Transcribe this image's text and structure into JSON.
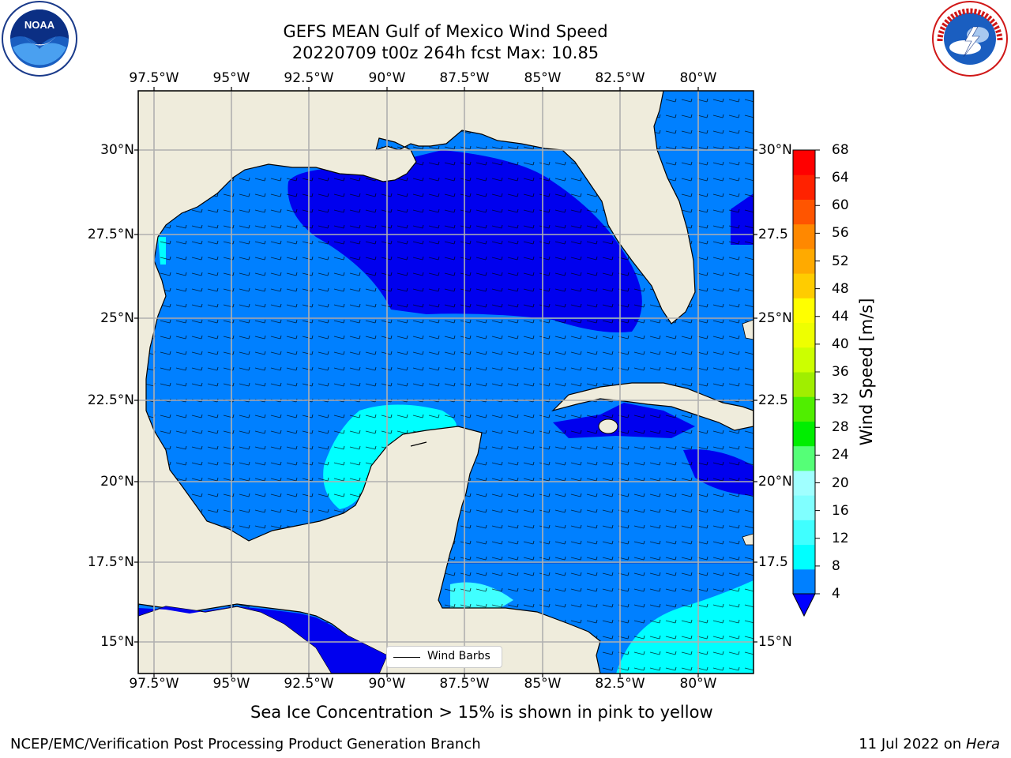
{
  "title_line1": "GEFS MEAN Gulf of Mexico Wind Speed",
  "title_line2": "20220709 t00z 264h fcst   Max: 10.85",
  "lon_ticks": [
    "97.5°W",
    "95°W",
    "92.5°W",
    "90°W",
    "87.5°W",
    "85°W",
    "82.5°W",
    "80°W"
  ],
  "lat_ticks_left": [
    "30°N",
    "27.5°N",
    "25°N",
    "22.5°N",
    "20°N",
    "17.5°N",
    "15°N"
  ],
  "lat_ticks_right": [
    "30°N",
    "27.5",
    "25°N",
    "22.5",
    "20°N",
    "17.5",
    "15°N"
  ],
  "colorbar": {
    "label": "Wind Speed [m/s]",
    "ticks": [
      "68",
      "64",
      "60",
      "56",
      "52",
      "48",
      "44",
      "40",
      "36",
      "32",
      "28",
      "24",
      "20",
      "16",
      "12",
      "8",
      "4"
    ],
    "colors_bottom_to_top": [
      "#0080ff",
      "#00ffff",
      "#40ffff",
      "#80ffff",
      "#a0ffff",
      "#55ff77",
      "#00ee00",
      "#50ee00",
      "#a0ee00",
      "#ccff00",
      "#eeff00",
      "#ffff00",
      "#ffcc00",
      "#ffaa00",
      "#ff8800",
      "#ff5500",
      "#ff2200",
      "#ff0000"
    ],
    "extend_color": "#0000ff"
  },
  "legend_label": "Wind Barbs",
  "subtitle": "Sea Ice Concentration > 15% is shown in pink to yellow",
  "footer_left": "NCEP/EMC/Verification Post Processing Product Generation Branch",
  "footer_right_prefix": "11 Jul 2022 on ",
  "footer_right_machine": "Hera",
  "logos": {
    "left": "noaa-logo",
    "right": "nws-logo"
  },
  "colors": {
    "land": "#efecdc",
    "grid": "#b0b0b0",
    "ocean_low": "#0000ee",
    "ocean_mid": "#0080ff",
    "ocean_high": "#00ffff"
  }
}
